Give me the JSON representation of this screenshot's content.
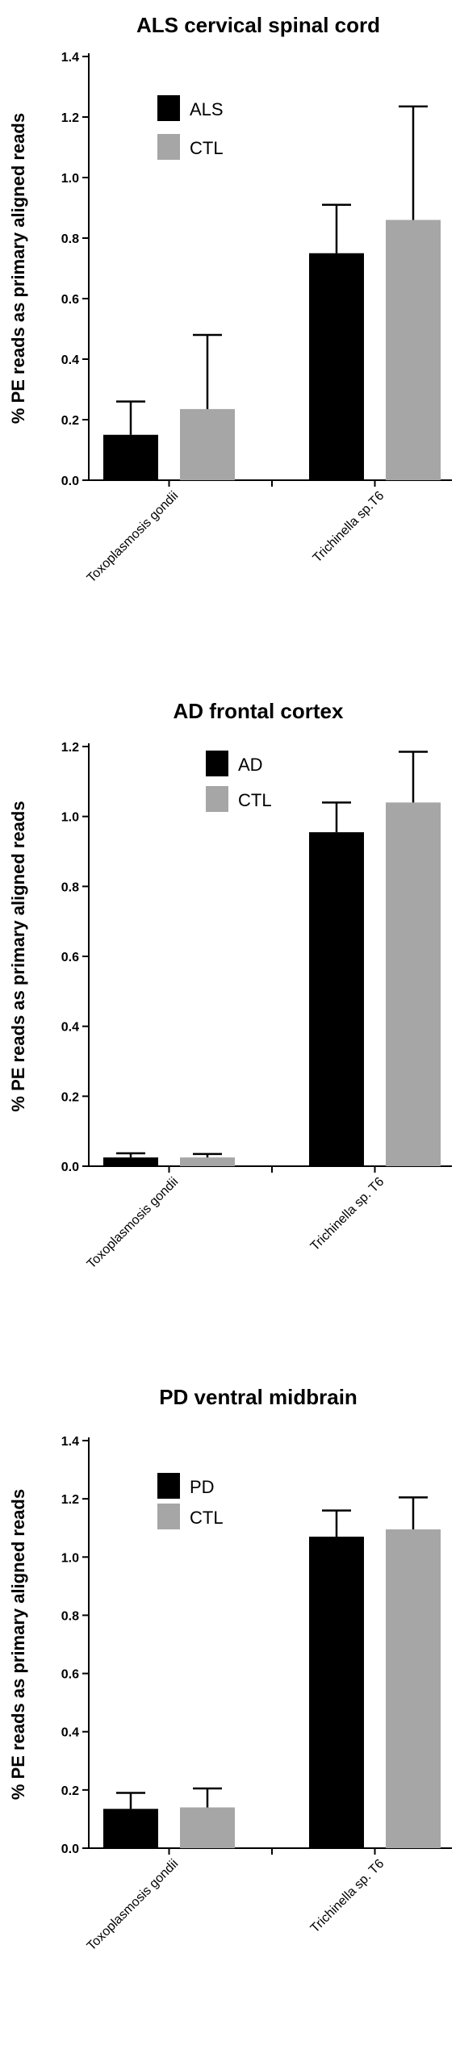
{
  "chart_data": [
    {
      "type": "bar",
      "title": "ALS cervical spinal cord",
      "ylabel": "% PE reads as primary aligned reads",
      "xlabel": "",
      "ylim": [
        0,
        1.4
      ],
      "yticks": [
        "0.0",
        "0.2",
        "0.4",
        "0.6",
        "0.8",
        "1.0",
        "1.2",
        "1.4"
      ],
      "categories": [
        "Toxoplasmosis gondii",
        "Trichinella sp.T6"
      ],
      "legend_position": "top-left",
      "series": [
        {
          "name": "ALS",
          "color": "#000000",
          "values": [
            0.15,
            0.75
          ],
          "errors": [
            0.11,
            0.16
          ]
        },
        {
          "name": "CTL",
          "color": "#a6a6a6",
          "values": [
            0.235,
            0.86
          ],
          "errors": [
            0.245,
            0.375
          ]
        }
      ]
    },
    {
      "type": "bar",
      "title": "AD frontal cortex",
      "ylabel": "% PE reads as primary aligned reads",
      "xlabel": "",
      "ylim": [
        0,
        1.2
      ],
      "yticks": [
        "0.0",
        "0.2",
        "0.4",
        "0.6",
        "0.8",
        "1.0",
        "1.2"
      ],
      "categories": [
        "Toxoplasmosis gondii",
        "Trichinella sp. T6"
      ],
      "legend_position": "top-center",
      "series": [
        {
          "name": "AD",
          "color": "#000000",
          "values": [
            0.025,
            0.955
          ],
          "errors": [
            0.012,
            0.085
          ]
        },
        {
          "name": "CTL",
          "color": "#a6a6a6",
          "values": [
            0.025,
            1.04
          ],
          "errors": [
            0.01,
            0.145
          ]
        }
      ]
    },
    {
      "type": "bar",
      "title": "PD ventral midbrain",
      "ylabel": "% PE reads as primary aligned reads",
      "xlabel": "",
      "ylim": [
        0,
        1.4
      ],
      "yticks": [
        "0.0",
        "0.2",
        "0.4",
        "0.6",
        "0.8",
        "1.0",
        "1.2",
        "1.4"
      ],
      "categories": [
        "Toxoplasmosis gondii",
        "Trichinella sp. T6"
      ],
      "legend_position": "top-left",
      "series": [
        {
          "name": "PD",
          "color": "#000000",
          "values": [
            0.135,
            1.07
          ],
          "errors": [
            0.055,
            0.09
          ]
        },
        {
          "name": "CTL",
          "color": "#a6a6a6",
          "values": [
            0.14,
            1.095
          ],
          "errors": [
            0.065,
            0.11
          ]
        }
      ]
    }
  ]
}
